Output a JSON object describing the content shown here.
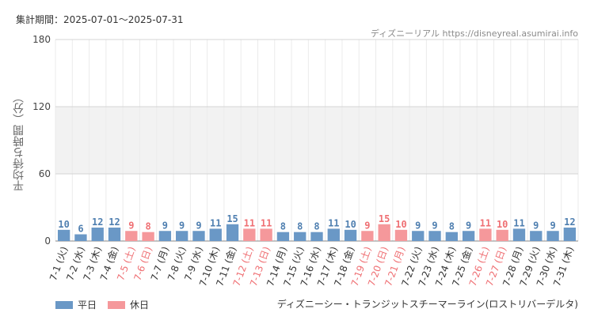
{
  "header": {
    "period": "集計期間：2025-07-01～2025-07-31",
    "source": "ディズニーリアル https://disneyreal.asumirai.info"
  },
  "footer": {
    "ride_name": "ディズニーシー・トランジットスチーマーライン(ロストリバーデルタ)"
  },
  "legend": [
    {
      "label": "平日",
      "color": "#6a98c6"
    },
    {
      "label": "休日",
      "color": "#f5989b"
    }
  ],
  "chart_data": {
    "type": "bar",
    "ylabel": "平均待ち時間（分）",
    "ylim": [
      0,
      180
    ],
    "yticks": [
      0,
      60,
      120,
      180
    ],
    "shaded_band": [
      60,
      120
    ],
    "grid": true,
    "legend_position": "bottom-left",
    "categories": [
      "7-1 (火)",
      "7-2 (水)",
      "7-3 (木)",
      "7-4 (金)",
      "7-5 (土)",
      "7-6 (日)",
      "7-7 (月)",
      "7-8 (火)",
      "7-9 (水)",
      "7-10 (木)",
      "7-11 (金)",
      "7-12 (土)",
      "7-13 (日)",
      "7-14 (月)",
      "7-15 (火)",
      "7-16 (水)",
      "7-17 (木)",
      "7-18 (金)",
      "7-19 (土)",
      "7-20 (日)",
      "7-21 (月)",
      "7-22 (火)",
      "7-23 (水)",
      "7-24 (木)",
      "7-25 (金)",
      "7-26 (土)",
      "7-27 (日)",
      "7-28 (月)",
      "7-29 (火)",
      "7-30 (水)",
      "7-31 (木)"
    ],
    "values": [
      10,
      6,
      12,
      12,
      9,
      8,
      9,
      9,
      9,
      11,
      15,
      11,
      11,
      8,
      8,
      8,
      11,
      10,
      9,
      15,
      10,
      9,
      9,
      8,
      9,
      11,
      10,
      11,
      9,
      9,
      12
    ],
    "holiday": [
      false,
      false,
      false,
      false,
      true,
      true,
      false,
      false,
      false,
      false,
      false,
      true,
      true,
      false,
      false,
      false,
      false,
      false,
      true,
      true,
      true,
      false,
      false,
      false,
      false,
      true,
      true,
      false,
      false,
      false,
      false
    ],
    "colors": {
      "weekday": "#6a98c6",
      "holiday": "#f5989b",
      "weekday_label": "#4f7fb0",
      "holiday_label": "#ef6f73"
    }
  }
}
